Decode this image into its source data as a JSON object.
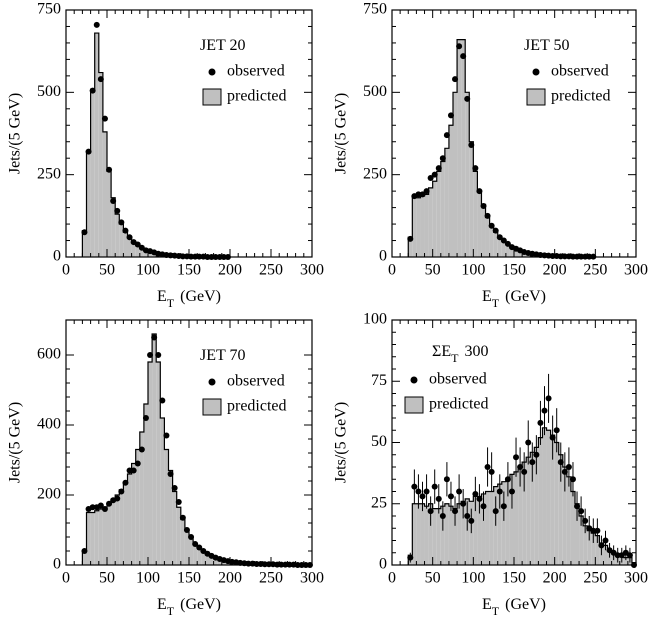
{
  "chart_data": [
    {
      "type": "histogram",
      "title": [
        "JET 20"
      ],
      "xlabel": [
        "E",
        "T",
        "(GeV)"
      ],
      "ylabel": "Jets/(5 GeV)",
      "legend": "upper right",
      "xlim": [
        0,
        300
      ],
      "xticks": [
        0,
        50,
        100,
        150,
        200,
        250,
        300
      ],
      "ylim": [
        0,
        750
      ],
      "yticks": [
        0,
        250,
        500,
        750
      ],
      "bins": [
        20,
        25,
        30,
        35,
        40,
        45,
        50,
        55,
        60,
        65,
        70,
        75,
        80,
        85,
        90,
        95,
        100,
        105,
        110,
        115,
        120,
        125,
        130,
        135,
        140,
        145,
        150,
        155,
        160,
        165,
        170,
        175,
        180,
        185,
        190,
        195,
        200
      ],
      "series": [
        {
          "name": "observed",
          "color": "#000000",
          "values": [
            75,
            320,
            505,
            705,
            540,
            420,
            265,
            170,
            140,
            105,
            80,
            60,
            45,
            38,
            28,
            20,
            18,
            14,
            10,
            8,
            6,
            5,
            4,
            3,
            2,
            2,
            1,
            1,
            1,
            1,
            0,
            0,
            0,
            0,
            0,
            0
          ]
        },
        {
          "name": "predicted",
          "color": "#c0c0c0",
          "values": [
            80,
            320,
            510,
            680,
            560,
            380,
            260,
            180,
            130,
            100,
            75,
            58,
            45,
            35,
            27,
            21,
            17,
            13,
            10,
            8,
            6,
            5,
            4,
            3,
            2,
            2,
            1.5,
            1,
            1,
            0.8,
            0.6,
            0.5,
            0.4,
            0.3,
            0.2,
            0.2
          ]
        }
      ]
    },
    {
      "type": "histogram",
      "title": [
        "JET 50"
      ],
      "xlabel": [
        "E",
        "T",
        "(GeV)"
      ],
      "ylabel": "Jets/(5 GeV)",
      "legend": "upper right",
      "xlim": [
        0,
        300
      ],
      "xticks": [
        0,
        50,
        100,
        150,
        200,
        250,
        300
      ],
      "ylim": [
        0,
        750
      ],
      "yticks": [
        0,
        250,
        500,
        750
      ],
      "bins": [
        20,
        25,
        30,
        35,
        40,
        45,
        50,
        55,
        60,
        65,
        70,
        75,
        80,
        85,
        90,
        95,
        100,
        105,
        110,
        115,
        120,
        125,
        130,
        135,
        140,
        145,
        150,
        155,
        160,
        165,
        170,
        175,
        180,
        185,
        190,
        195,
        200,
        205,
        210,
        215,
        220,
        225,
        230,
        235,
        240,
        245,
        250
      ],
      "series": [
        {
          "name": "observed",
          "color": "#000000",
          "values": [
            55,
            185,
            190,
            190,
            200,
            240,
            250,
            270,
            300,
            370,
            430,
            540,
            640,
            610,
            480,
            340,
            270,
            200,
            155,
            125,
            95,
            80,
            60,
            50,
            40,
            30,
            25,
            20,
            15,
            12,
            10,
            8,
            6,
            5,
            4,
            3,
            3,
            2,
            2,
            2,
            1,
            1,
            1,
            1,
            1,
            1
          ]
        },
        {
          "name": "predicted",
          "color": "#c0c0c0",
          "values": [
            60,
            180,
            180,
            185,
            190,
            210,
            230,
            260,
            290,
            330,
            400,
            500,
            660,
            660,
            500,
            350,
            260,
            200,
            160,
            120,
            95,
            75,
            60,
            48,
            38,
            30,
            24,
            19,
            15,
            12,
            10,
            8,
            6,
            5,
            4,
            3,
            3,
            2,
            2,
            2,
            1,
            1,
            1,
            1,
            1,
            0.5
          ]
        }
      ]
    },
    {
      "type": "histogram",
      "title": [
        "JET 70"
      ],
      "xlabel": [
        "E",
        "T",
        "(GeV)"
      ],
      "ylabel": "Jets/(5 GeV)",
      "legend": "upper right",
      "xlim": [
        0,
        300
      ],
      "xticks": [
        0,
        50,
        100,
        150,
        200,
        250,
        300
      ],
      "ylim": [
        0,
        700
      ],
      "yticks": [
        0,
        200,
        400,
        600
      ],
      "bins": [
        20,
        25,
        30,
        35,
        40,
        45,
        50,
        55,
        60,
        65,
        70,
        75,
        80,
        85,
        90,
        95,
        100,
        105,
        110,
        115,
        120,
        125,
        130,
        135,
        140,
        145,
        150,
        155,
        160,
        165,
        170,
        175,
        180,
        185,
        190,
        195,
        200,
        205,
        210,
        215,
        220,
        225,
        230,
        235,
        240,
        245,
        250,
        255,
        260,
        265,
        270,
        275,
        280,
        285,
        290,
        295,
        300
      ],
      "series": [
        {
          "name": "observed",
          "color": "#000000",
          "values": [
            40,
            160,
            165,
            165,
            170,
            160,
            175,
            185,
            190,
            210,
            235,
            270,
            270,
            290,
            330,
            420,
            600,
            650,
            600,
            470,
            370,
            260,
            220,
            180,
            135,
            100,
            80,
            60,
            50,
            40,
            32,
            26,
            21,
            17,
            14,
            11,
            9,
            8,
            6,
            5,
            4,
            4,
            3,
            3,
            2,
            2,
            2,
            1,
            1,
            1,
            1,
            1,
            0,
            0,
            0,
            0
          ]
        },
        {
          "name": "predicted",
          "color": "#c0c0c0",
          "values": [
            40,
            150,
            150,
            155,
            160,
            165,
            175,
            185,
            200,
            215,
            235,
            260,
            290,
            330,
            380,
            460,
            580,
            660,
            580,
            420,
            330,
            270,
            210,
            165,
            130,
            100,
            80,
            62,
            50,
            40,
            32,
            26,
            21,
            17,
            14,
            11,
            9,
            8,
            6,
            5,
            4,
            4,
            3,
            3,
            2,
            2,
            2,
            1,
            1,
            1,
            1,
            1,
            0,
            0,
            0,
            0
          ]
        }
      ]
    },
    {
      "type": "histogram",
      "title": [
        "ΣE",
        "T",
        "300"
      ],
      "xlabel": [
        "E",
        "T",
        "(GeV)"
      ],
      "ylabel": "Jets/(5 GeV)",
      "legend": "upper left",
      "xlim": [
        0,
        300
      ],
      "xticks": [
        0,
        50,
        100,
        150,
        200,
        250,
        300
      ],
      "ylim": [
        0,
        100
      ],
      "yticks": [
        0,
        25,
        50,
        75,
        100
      ],
      "bins": [
        20,
        25,
        30,
        35,
        40,
        45,
        50,
        55,
        60,
        65,
        70,
        75,
        80,
        85,
        90,
        95,
        100,
        105,
        110,
        115,
        120,
        125,
        130,
        135,
        140,
        145,
        150,
        155,
        160,
        165,
        170,
        175,
        180,
        185,
        190,
        195,
        200,
        205,
        210,
        215,
        220,
        225,
        230,
        235,
        240,
        245,
        250,
        255,
        260,
        265,
        270,
        275,
        280,
        285,
        290,
        295,
        300
      ],
      "series": [
        {
          "name": "observed",
          "color": "#000000",
          "values": [
            3,
            32,
            30,
            28,
            30,
            22,
            32,
            27,
            20,
            35,
            28,
            22,
            30,
            25,
            20,
            18,
            29,
            27,
            24,
            40,
            38,
            22,
            30,
            24,
            35,
            30,
            44,
            40,
            38,
            50,
            42,
            45,
            58,
            63,
            68,
            52,
            55,
            42,
            38,
            40,
            35,
            24,
            22,
            18,
            15,
            14,
            14,
            8,
            10,
            6,
            5,
            4,
            4,
            5,
            4,
            0
          ],
          "errors": [
            2,
            7,
            7,
            6,
            7,
            6,
            7,
            6,
            6,
            7,
            6,
            6,
            7,
            6,
            6,
            5,
            7,
            6,
            6,
            8,
            8,
            6,
            7,
            6,
            7,
            7,
            8,
            8,
            8,
            9,
            8,
            8,
            9,
            10,
            10,
            9,
            9,
            8,
            8,
            8,
            7,
            6,
            6,
            5,
            5,
            5,
            5,
            4,
            4,
            3,
            3,
            3,
            3,
            3,
            3,
            1
          ]
        },
        {
          "name": "predicted",
          "color": "#c0c0c0",
          "values": [
            4,
            25,
            25,
            25,
            24,
            25,
            23,
            23,
            24,
            25,
            24,
            23,
            25,
            26,
            27,
            26,
            28,
            28,
            29,
            30,
            30,
            32,
            33,
            34,
            35,
            37,
            38,
            40,
            42,
            44,
            46,
            48,
            52,
            56,
            55,
            53,
            50,
            45,
            40,
            36,
            30,
            25,
            20,
            16,
            14,
            13,
            12,
            9,
            8,
            6,
            5,
            4,
            4,
            3,
            3,
            1
          ]
        }
      ]
    }
  ]
}
